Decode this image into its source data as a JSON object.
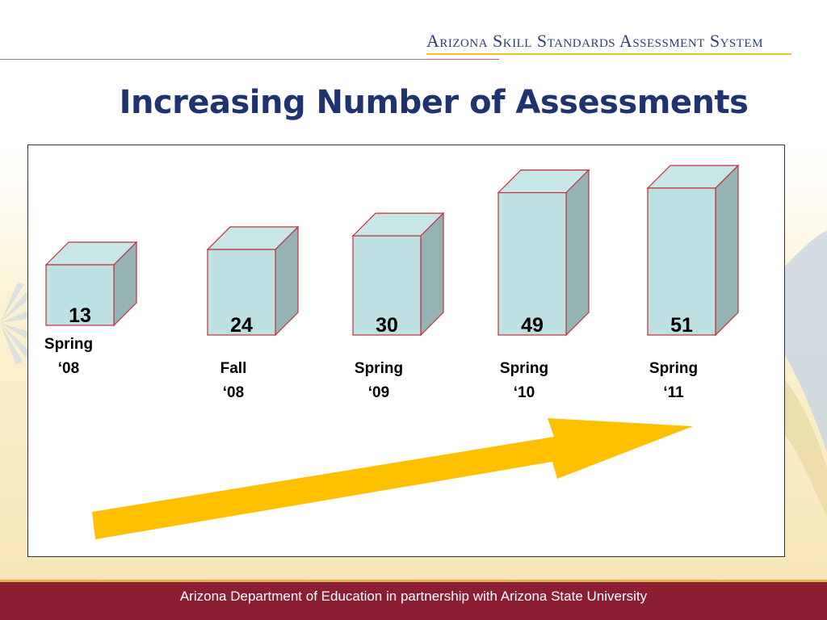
{
  "header": {
    "system_name": "Arizona Skill Standards Assessment System"
  },
  "slide": {
    "title": "Increasing Number of Assessments"
  },
  "footer": {
    "text": "Arizona Department of Education in partnership with Arizona State University"
  },
  "colors": {
    "bar_front": "#bde1e3",
    "bar_top": "#c7e6e8",
    "bar_side": "#93b3b5",
    "bar_outline": "#c0313a",
    "arrow": "#ffc000",
    "footer_bg": "#8b1e32",
    "title": "#1f3370"
  },
  "chart_data": {
    "type": "bar",
    "style": "3d-columns",
    "categories": [
      [
        "Spring",
        "‘08"
      ],
      [
        "Fall",
        "‘08"
      ],
      [
        "Spring",
        "‘09"
      ],
      [
        "Spring",
        "‘10"
      ],
      [
        "Spring",
        "‘11"
      ]
    ],
    "values": [
      13,
      24,
      30,
      49,
      51
    ],
    "data_labels": [
      "13",
      "24",
      "30",
      "49",
      "51"
    ],
    "title": "",
    "xlabel": "",
    "ylabel": "",
    "trend_arrow": "up-right"
  }
}
